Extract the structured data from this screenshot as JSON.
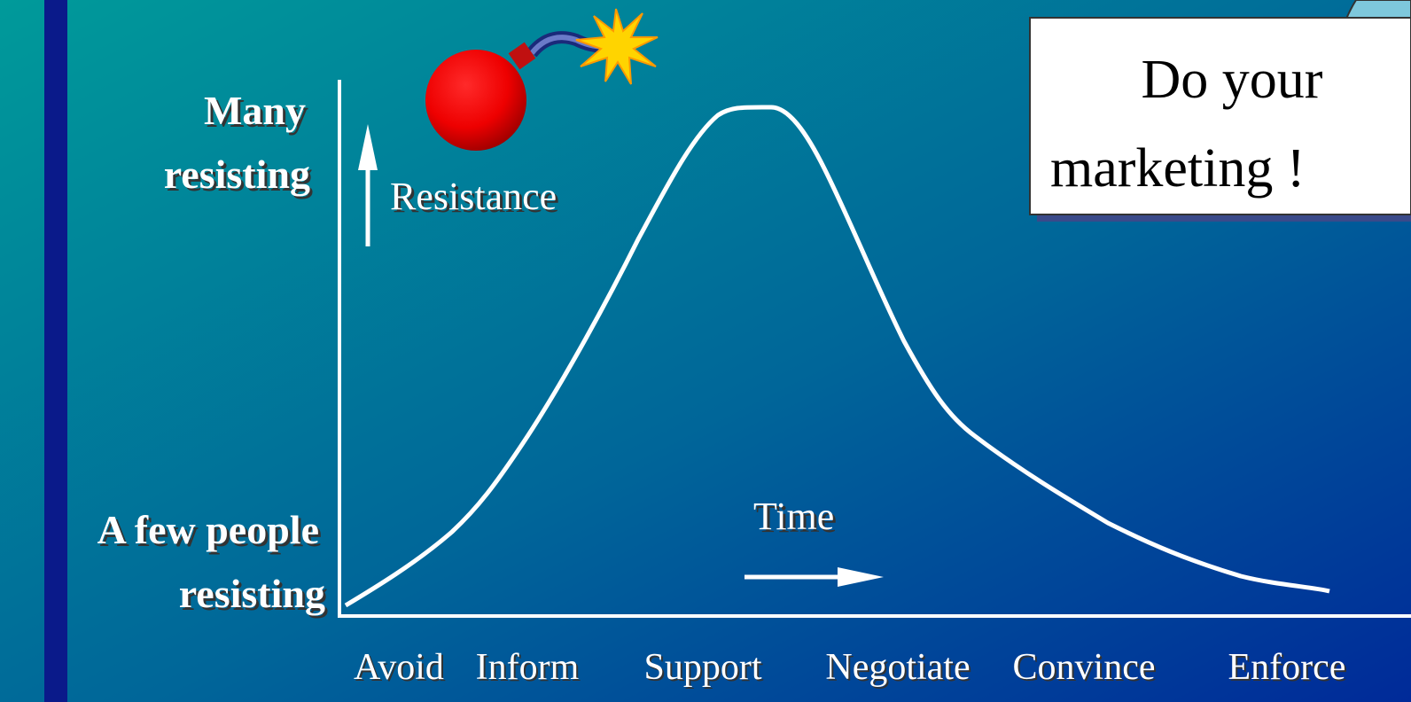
{
  "diagram": {
    "y_top_label": [
      "Many",
      "resisting"
    ],
    "y_bottom_label": [
      "A few people",
      "resisting"
    ],
    "y_axis_label": "Resistance",
    "x_axis_label": "Time",
    "stages": [
      "Avoid",
      "Inform",
      "Support",
      "Negotiate",
      "Convince",
      "Enforce"
    ],
    "callout": [
      "Do your",
      "marketing !"
    ]
  }
}
